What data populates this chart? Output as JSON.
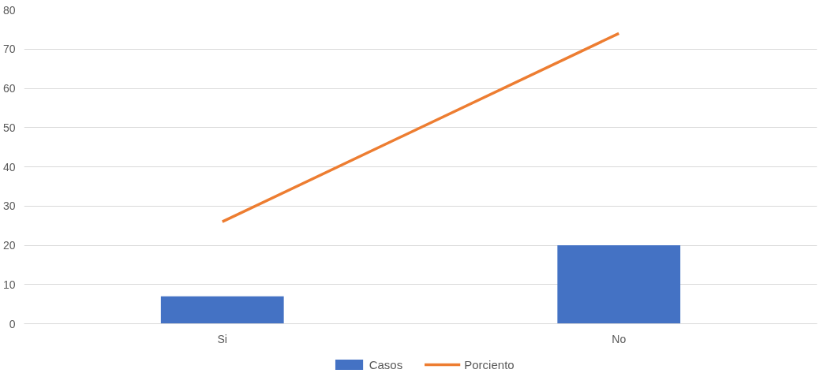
{
  "chart_data": {
    "type": "bar",
    "categories": [
      "Si",
      "No"
    ],
    "series": [
      {
        "name": "Casos",
        "color": "#4472c4",
        "values": [
          7,
          20
        ]
      },
      {
        "name": "Porciento",
        "type": "line",
        "color": "#ed7d31",
        "values": [
          26,
          74
        ]
      }
    ],
    "ylim": [
      0,
      80
    ],
    "yticks": [
      0,
      10,
      20,
      30,
      40,
      50,
      60,
      70,
      80
    ],
    "grid": "y",
    "legend": "bottom",
    "marker": "none",
    "line_style": "solid"
  }
}
